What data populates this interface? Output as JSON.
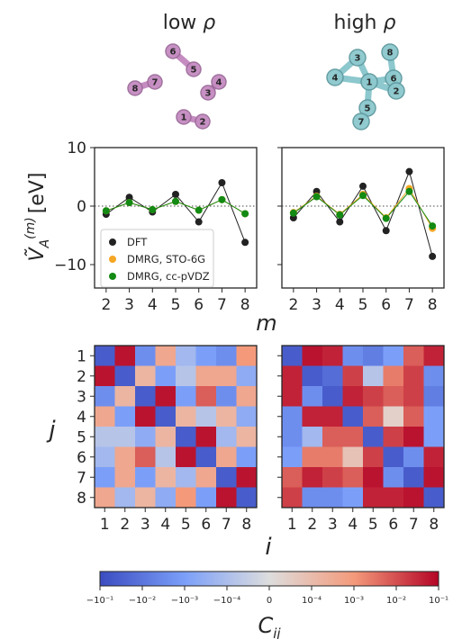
{
  "titles": {
    "left_prefix": "low ",
    "right_prefix": "high ",
    "greek": "ρ"
  },
  "molecules": {
    "low": {
      "atoms": [
        {
          "label": "6"
        },
        {
          "label": "5"
        },
        {
          "label": "8"
        },
        {
          "label": "7"
        },
        {
          "label": "4"
        },
        {
          "label": "3"
        },
        {
          "label": "1"
        },
        {
          "label": "2"
        }
      ],
      "color": "#c58cc1"
    },
    "high": {
      "atoms": [
        {
          "label": "3"
        },
        {
          "label": "8"
        },
        {
          "label": "4"
        },
        {
          "label": "1"
        },
        {
          "label": "6"
        },
        {
          "label": "2"
        },
        {
          "label": "5"
        },
        {
          "label": "7"
        }
      ],
      "color": "#8cc8cd"
    }
  },
  "chart_data": [
    {
      "type": "line",
      "panel": "low rho",
      "x": [
        2,
        3,
        4,
        5,
        6,
        7,
        8
      ],
      "xlabel": "m",
      "ylabel_main": "V",
      "ylabel_sub": "A",
      "ylabel_sup": "(m)",
      "ylabel_unit": "[eV]",
      "ylim": [
        -14,
        10
      ],
      "yticks": [
        "10",
        "0",
        "−10"
      ],
      "series": [
        {
          "name": "DFT",
          "color": "#222222",
          "values": [
            -1.4,
            1.5,
            -1.0,
            2.0,
            -2.7,
            4.0,
            -6.2
          ]
        },
        {
          "name": "DMRG, STO-6G",
          "color": "#f5a623",
          "values": [
            -0.8,
            0.6,
            -0.6,
            0.8,
            -0.7,
            1.1,
            -1.3
          ]
        },
        {
          "name": "DMRG, cc-pVDZ",
          "color": "#138a13",
          "values": [
            -0.8,
            0.6,
            -0.6,
            0.8,
            -0.7,
            1.1,
            -1.3
          ]
        }
      ],
      "zero_line": "dotted"
    },
    {
      "type": "line",
      "panel": "high rho",
      "x": [
        2,
        3,
        4,
        5,
        6,
        7,
        8
      ],
      "xlabel": "m",
      "ylim": [
        -14,
        10
      ],
      "series": [
        {
          "name": "DFT",
          "color": "#222222",
          "values": [
            -2.0,
            2.5,
            -2.7,
            3.4,
            -4.2,
            5.9,
            -8.6
          ]
        },
        {
          "name": "DMRG, STO-6G",
          "color": "#f5a623",
          "values": [
            -1.1,
            1.7,
            -1.4,
            2.0,
            -2.0,
            3.0,
            -3.8
          ]
        },
        {
          "name": "DMRG, cc-pVDZ",
          "color": "#138a13",
          "values": [
            -1.2,
            1.6,
            -1.5,
            1.8,
            -2.1,
            2.5,
            -3.4
          ]
        }
      ],
      "zero_line": "dotted"
    },
    {
      "type": "heatmap",
      "panel": "low rho",
      "rows": [
        1,
        2,
        3,
        4,
        5,
        6,
        7,
        8
      ],
      "cols": [
        1,
        2,
        3,
        4,
        5,
        6,
        7,
        8
      ],
      "xlabel": "i",
      "ylabel": "j",
      "values": [
        [
          -0.9,
          0.95,
          -0.6,
          0.4,
          -0.3,
          -0.5,
          -0.6,
          0.5
        ],
        [
          0.95,
          -0.9,
          0.3,
          -0.5,
          -0.2,
          0.4,
          0.4,
          -0.4
        ],
        [
          -0.6,
          0.3,
          -0.9,
          0.95,
          -0.5,
          0.7,
          -0.6,
          0.4
        ],
        [
          0.4,
          -0.5,
          0.95,
          -0.9,
          0.3,
          -0.2,
          0.3,
          -0.4
        ],
        [
          -0.2,
          -0.2,
          -0.4,
          0.3,
          -0.9,
          0.95,
          -0.3,
          0.3
        ],
        [
          -0.3,
          0.4,
          0.7,
          -0.2,
          0.95,
          -0.9,
          0.4,
          -0.5
        ],
        [
          -0.5,
          0.4,
          -0.5,
          0.3,
          -0.3,
          0.4,
          -0.9,
          0.95
        ],
        [
          0.4,
          -0.3,
          0.3,
          -0.4,
          0.5,
          -0.5,
          0.95,
          -0.9
        ]
      ]
    },
    {
      "type": "heatmap",
      "panel": "high rho",
      "rows": [
        1,
        2,
        3,
        4,
        5,
        6,
        7,
        8
      ],
      "cols": [
        1,
        2,
        3,
        4,
        5,
        6,
        7,
        8
      ],
      "xlabel": "i",
      "values": [
        [
          -0.9,
          0.95,
          0.9,
          -0.6,
          -0.7,
          -0.5,
          0.7,
          0.9
        ],
        [
          0.9,
          -0.9,
          -0.8,
          0.8,
          -0.2,
          0.6,
          0.8,
          -0.6
        ],
        [
          0.9,
          -0.6,
          -0.9,
          0.9,
          0.8,
          0.7,
          0.8,
          -0.7
        ],
        [
          -0.6,
          0.9,
          0.9,
          -0.9,
          0.7,
          0.1,
          0.7,
          -0.5
        ],
        [
          -0.6,
          -0.3,
          0.7,
          0.7,
          -0.9,
          0.8,
          0.95,
          -0.5
        ],
        [
          -0.5,
          0.6,
          0.6,
          0.2,
          0.8,
          -0.9,
          -0.6,
          0.9
        ],
        [
          0.7,
          0.9,
          0.8,
          0.7,
          0.95,
          -0.6,
          -0.9,
          0.95
        ],
        [
          0.8,
          -0.6,
          -0.6,
          -0.5,
          0.9,
          0.9,
          0.95,
          -0.9
        ]
      ]
    }
  ],
  "colorbar": {
    "label_main": "C",
    "label_sub": "ij",
    "tick_labels": [
      "−10⁻¹",
      "−10⁻²",
      "−10⁻³",
      "−10⁻⁴",
      "0",
      "10⁻⁴",
      "10⁻³",
      "10⁻²",
      "10⁻¹"
    ],
    "low_color": "#3b4cc0",
    "mid_color": "#dddddd",
    "high_color": "#b40426"
  }
}
